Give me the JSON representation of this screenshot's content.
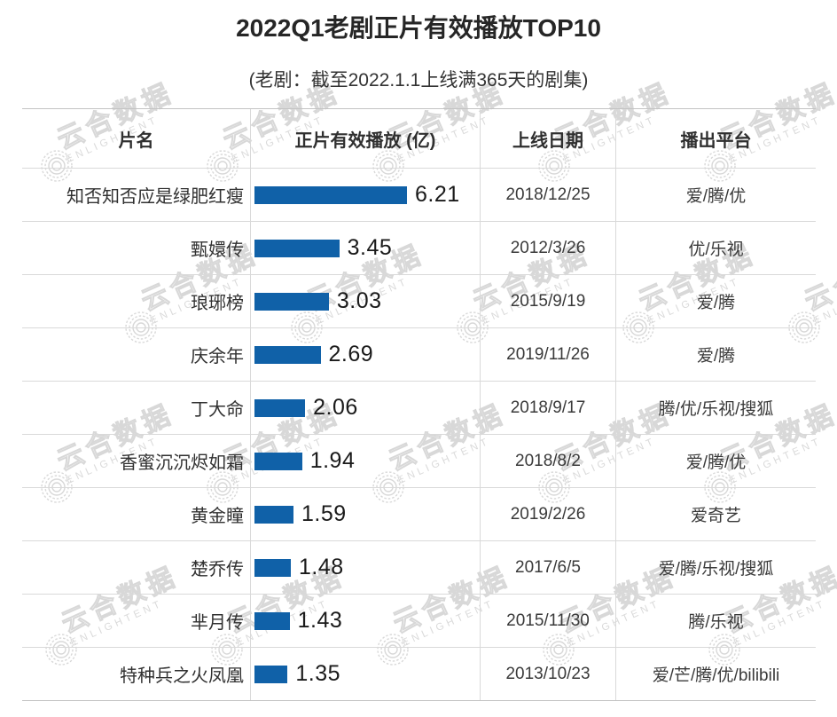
{
  "header": {
    "title": "2022Q1老剧正片有效播放TOP10",
    "subtitle": "(老剧：截至2022.1.1上线满365天的剧集)"
  },
  "table": {
    "columns": [
      "片名",
      "正片有效播放 (亿)",
      "上线日期",
      "播出平台"
    ]
  },
  "watermark": {
    "cn": "云合数据",
    "en": "ENLIGHTENT"
  },
  "colors": {
    "bar": "#1061a8",
    "grid": "#d9d9d9"
  },
  "chart_data": {
    "type": "bar",
    "orientation": "horizontal",
    "title": "2022Q1老剧正片有效播放TOP10",
    "subtitle": "(老剧：截至2022.1.1上线满365天的剧集)",
    "value_unit": "亿",
    "xlim": [
      0,
      6.21
    ],
    "categories": [
      "知否知否应是绿肥红瘦",
      "甄嬛传",
      "琅琊榜",
      "庆余年",
      "丁大命",
      "香蜜沉沉烬如霜",
      "黄金瞳",
      "楚乔传",
      "芈月传",
      "特种兵之火凤凰"
    ],
    "values": [
      6.21,
      3.45,
      3.03,
      2.69,
      2.06,
      1.94,
      1.59,
      1.48,
      1.43,
      1.35
    ],
    "dates": [
      "2018/12/25",
      "2012/3/26",
      "2015/9/19",
      "2019/11/26",
      "2018/9/17",
      "2018/8/2",
      "2019/2/26",
      "2017/6/5",
      "2015/11/30",
      "2013/10/23"
    ],
    "platforms": [
      "爱/腾/优",
      "优/乐视",
      "爱/腾",
      "爱/腾",
      "腾/优/乐视/搜狐",
      "爱/腾/优",
      "爱奇艺",
      "爱/腾/乐视/搜狐",
      "腾/乐视",
      "爱/芒/腾/优/bilibili"
    ]
  }
}
